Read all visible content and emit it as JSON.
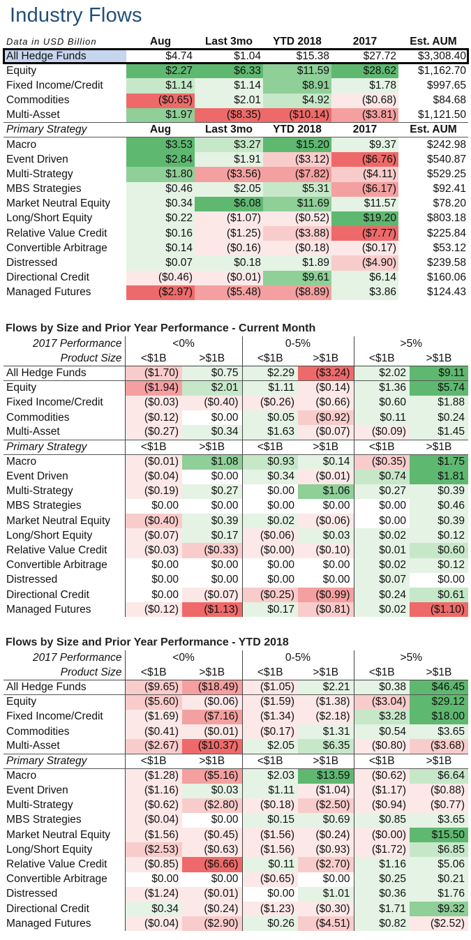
{
  "title": "Industry Flows",
  "colors": {
    "green_strong": "#5fb870",
    "green_mid": "#8fcf98",
    "green_light": "#c6e8c9",
    "green_faint": "#e4f3e4",
    "red_strong": "#ee6a6a",
    "red_mid": "#f4a0a0",
    "red_light": "#f9cccc",
    "red_faint": "#fde8e8",
    "highlight_row": "#c5d6ee"
  },
  "table1": {
    "header": [
      "Data in USD Billion",
      "Aug",
      "Last 3mo",
      "YTD 2018",
      "2017",
      "Est. AUM"
    ],
    "all_row": {
      "label": "All Hedge Funds",
      "cells": [
        "$4.74",
        "$1.04",
        "$15.38",
        "$27.72",
        "$3,308.40"
      ],
      "tones": [
        "",
        "",
        "",
        "",
        ""
      ]
    },
    "asset_rows": [
      {
        "label": "Equity",
        "cells": [
          "$2.27",
          "$6.33",
          "$11.59",
          "$28.62",
          "$1,162.70"
        ],
        "tones": [
          "gs",
          "gs",
          "gm",
          "gs",
          ""
        ]
      },
      {
        "label": "Fixed Income/Credit",
        "cells": [
          "$1.14",
          "$1.14",
          "$8.91",
          "$1.78",
          "$997.65"
        ],
        "tones": [
          "gl",
          "gf",
          "gm",
          "gf",
          ""
        ]
      },
      {
        "label": "Commodities",
        "cells": [
          "($0.65)",
          "$2.01",
          "$4.92",
          "($0.68)",
          "$84.68"
        ],
        "tones": [
          "rs",
          "gf",
          "gl",
          "rf",
          ""
        ]
      },
      {
        "label": "Multi-Asset",
        "cells": [
          "$1.97",
          "($8.35)",
          "($10.14)",
          "($3.81)",
          "$1,121.50"
        ],
        "tones": [
          "gm",
          "rs",
          "rs",
          "rm",
          ""
        ]
      }
    ],
    "strategy_header": [
      "Primary Strategy",
      "Aug",
      "Last 3mo",
      "YTD 2018",
      "2017",
      "Est. AUM"
    ],
    "strategy_rows": [
      {
        "label": "Macro",
        "cells": [
          "$3.53",
          "$3.27",
          "$15.20",
          "$9.37",
          "$242.98"
        ],
        "tones": [
          "gs",
          "gl",
          "gs",
          "gf",
          ""
        ]
      },
      {
        "label": "Event Driven",
        "cells": [
          "$2.84",
          "$1.91",
          "($3.12)",
          "($6.76)",
          "$540.87"
        ],
        "tones": [
          "gs",
          "gf",
          "rl",
          "rs",
          ""
        ]
      },
      {
        "label": "Multi-Strategy",
        "cells": [
          "$1.80",
          "($3.56)",
          "($7.82)",
          "($4.11)",
          "$529.25"
        ],
        "tones": [
          "gm",
          "rm",
          "rm",
          "rl",
          ""
        ]
      },
      {
        "label": "MBS Strategies",
        "cells": [
          "$0.46",
          "$2.05",
          "$5.31",
          "($6.17)",
          "$92.41"
        ],
        "tones": [
          "gf",
          "gf",
          "gl",
          "rm",
          ""
        ]
      },
      {
        "label": "Market Neutral Equity",
        "cells": [
          "$0.34",
          "$6.08",
          "$11.69",
          "$11.57",
          "$78.20"
        ],
        "tones": [
          "gf",
          "gs",
          "gm",
          "gf",
          ""
        ]
      },
      {
        "label": "Long/Short Equity",
        "cells": [
          "$0.22",
          "($1.07)",
          "($0.52)",
          "$19.20",
          "$803.18"
        ],
        "tones": [
          "gf",
          "rf",
          "rf",
          "gs",
          ""
        ]
      },
      {
        "label": "Relative Value Credit",
        "cells": [
          "$0.16",
          "($1.25)",
          "($3.88)",
          "($7.77)",
          "$225.84"
        ],
        "tones": [
          "gf",
          "rf",
          "rl",
          "rs",
          ""
        ]
      },
      {
        "label": "Convertible Arbitrage",
        "cells": [
          "$0.14",
          "($0.16)",
          "($0.18)",
          "($0.17)",
          "$53.12"
        ],
        "tones": [
          "gf",
          "rf",
          "rf",
          "rf",
          ""
        ]
      },
      {
        "label": "Distressed",
        "cells": [
          "$0.07",
          "$0.18",
          "$1.89",
          "($4.90)",
          "$239.58"
        ],
        "tones": [
          "gf",
          "gf",
          "gf",
          "rl",
          ""
        ]
      },
      {
        "label": "Directional Credit",
        "cells": [
          "($0.46)",
          "($0.01)",
          "$9.61",
          "$6.14",
          "$160.06"
        ],
        "tones": [
          "rf",
          "rf",
          "gm",
          "gf",
          ""
        ]
      },
      {
        "label": "Managed Futures",
        "cells": [
          "($2.97)",
          "($5.48)",
          "($8.89)",
          "$3.86",
          "$124.43"
        ],
        "tones": [
          "rs",
          "rm",
          "rm",
          "gf",
          ""
        ]
      }
    ]
  },
  "section2": {
    "title": "Flows by Size and Prior Year Performance - Current Month",
    "perf_label": "2017 Performance",
    "perf_groups": [
      "<0%",
      "0-5%",
      ">5%"
    ],
    "size_label": "Product Size",
    "sizes": [
      "<$1B",
      ">$1B",
      "<$1B",
      ">$1B",
      "<$1B",
      ">$1B"
    ],
    "all_row": {
      "label": "All Hedge Funds",
      "cells": [
        "($1.70)",
        "$0.75",
        "$2.29",
        "($3.24)",
        "$2.02",
        "$9.11"
      ],
      "tones": [
        "rl",
        "gf",
        "gf",
        "rs",
        "gf",
        "gs"
      ]
    },
    "asset_rows": [
      {
        "label": "Equity",
        "cells": [
          "($1.94)",
          "$2.01",
          "$1.11",
          "($0.14)",
          "$1.36",
          "$5.74"
        ],
        "tones": [
          "rm",
          "gl",
          "gf",
          "rf",
          "gf",
          "gs"
        ]
      },
      {
        "label": "Fixed Income/Credit",
        "cells": [
          "($0.03)",
          "($0.40)",
          "($0.26)",
          "($0.66)",
          "$0.60",
          "$1.88"
        ],
        "tones": [
          "rf",
          "rf",
          "rf",
          "rf",
          "gf",
          "gf"
        ]
      },
      {
        "label": "Commodities",
        "cells": [
          "($0.12)",
          "$0.00",
          "$0.05",
          "($0.92)",
          "$0.11",
          "$0.24"
        ],
        "tones": [
          "rf",
          "",
          "gf",
          "rl",
          "gf",
          "gf"
        ]
      },
      {
        "label": "Multi-Asset",
        "cells": [
          "($0.27)",
          "$0.34",
          "$1.63",
          "($0.07)",
          "($0.09)",
          "$1.45"
        ],
        "tones": [
          "rf",
          "gf",
          "gf",
          "rf",
          "rf",
          "gf"
        ]
      }
    ],
    "strategy_label": "Primary Strategy",
    "strategy_rows": [
      {
        "label": "Macro",
        "cells": [
          "($0.01)",
          "$1.08",
          "$0.93",
          "$0.14",
          "($0.35)",
          "$1.75"
        ],
        "tones": [
          "rf",
          "gm",
          "gl",
          "gf",
          "rl",
          "gs"
        ]
      },
      {
        "label": "Event Driven",
        "cells": [
          "($0.04)",
          "$0.00",
          "$0.34",
          "($0.01)",
          "$0.74",
          "$1.81"
        ],
        "tones": [
          "rf",
          "",
          "gf",
          "rf",
          "gl",
          "gs"
        ]
      },
      {
        "label": "Multi-Strategy",
        "cells": [
          "($0.19)",
          "$0.27",
          "$0.00",
          "$1.06",
          "$0.27",
          "$0.39"
        ],
        "tones": [
          "rf",
          "gf",
          "",
          "gm",
          "gf",
          "gf"
        ]
      },
      {
        "label": "MBS Strategies",
        "cells": [
          "$0.00",
          "$0.00",
          "$0.00",
          "$0.00",
          "$0.00",
          "$0.46"
        ],
        "tones": [
          "",
          "",
          "",
          "",
          "",
          "gf"
        ]
      },
      {
        "label": "Market Neutral Equity",
        "cells": [
          "($0.40)",
          "$0.39",
          "$0.02",
          "($0.06)",
          "$0.00",
          "$0.39"
        ],
        "tones": [
          "rl",
          "gf",
          "gf",
          "rf",
          "",
          "gf"
        ]
      },
      {
        "label": "Long/Short Equity",
        "cells": [
          "($0.07)",
          "$0.17",
          "($0.06)",
          "$0.03",
          "$0.02",
          "$0.12"
        ],
        "tones": [
          "rf",
          "gf",
          "rf",
          "gf",
          "gf",
          "gf"
        ]
      },
      {
        "label": "Relative Value Credit",
        "cells": [
          "($0.03)",
          "($0.33)",
          "($0.00)",
          "($0.10)",
          "$0.01",
          "$0.60"
        ],
        "tones": [
          "rf",
          "rl",
          "rf",
          "rf",
          "gf",
          "gl"
        ]
      },
      {
        "label": "Convertible Arbitrage",
        "cells": [
          "$0.00",
          "$0.00",
          "$0.00",
          "$0.00",
          "$0.02",
          "$0.12"
        ],
        "tones": [
          "",
          "",
          "",
          "",
          "gf",
          "gf"
        ]
      },
      {
        "label": "Distressed",
        "cells": [
          "$0.00",
          "$0.00",
          "$0.00",
          "$0.00",
          "$0.07",
          "$0.00"
        ],
        "tones": [
          "",
          "",
          "",
          "",
          "gf",
          ""
        ]
      },
      {
        "label": "Directional Credit",
        "cells": [
          "$0.00",
          "($0.07)",
          "($0.25)",
          "($0.99)",
          "$0.24",
          "$0.61"
        ],
        "tones": [
          "",
          "rf",
          "rl",
          "rm",
          "gf",
          "gl"
        ]
      },
      {
        "label": "Managed Futures",
        "cells": [
          "($0.12)",
          "($1.13)",
          "$0.17",
          "($0.81)",
          "$0.02",
          "($1.10)"
        ],
        "tones": [
          "rf",
          "rs",
          "gf",
          "rl",
          "gf",
          "rs"
        ]
      }
    ]
  },
  "section3": {
    "title": "Flows by Size and Prior Year Performance - YTD 2018",
    "perf_label": "2017 Performance",
    "perf_groups": [
      "<0%",
      "0-5%",
      ">5%"
    ],
    "size_label": "Product Size",
    "sizes": [
      "<$1B",
      ">$1B",
      "<$1B",
      ">$1B",
      "<$1B",
      ">$1B"
    ],
    "all_row": {
      "label": "All Hedge Funds",
      "cells": [
        "($9.65)",
        "($18.49)",
        "($1.05)",
        "$2.21",
        "$0.38",
        "$46.45"
      ],
      "tones": [
        "rl",
        "rm",
        "rf",
        "gf",
        "gf",
        "gs"
      ]
    },
    "asset_rows": [
      {
        "label": "Equity",
        "cells": [
          "($5.60)",
          "($0.06)",
          "($1.59)",
          "($1.38)",
          "($3.04)",
          "$29.12"
        ],
        "tones": [
          "rl",
          "rf",
          "rf",
          "rf",
          "rl",
          "gs"
        ]
      },
      {
        "label": "Fixed Income/Credit",
        "cells": [
          "($1.69)",
          "($7.16)",
          "($1.34)",
          "($2.18)",
          "$3.28",
          "$18.00"
        ],
        "tones": [
          "rf",
          "rm",
          "rf",
          "rf",
          "gl",
          "gs"
        ]
      },
      {
        "label": "Commodities",
        "cells": [
          "($0.41)",
          "($0.01)",
          "($0.17)",
          "$1.31",
          "$0.54",
          "$3.65"
        ],
        "tones": [
          "rf",
          "rf",
          "rf",
          "gf",
          "gf",
          "gf"
        ]
      },
      {
        "label": "Multi-Asset",
        "cells": [
          "($2.67)",
          "($10.37)",
          "$2.05",
          "$6.35",
          "($0.80)",
          "($3.68)"
        ],
        "tones": [
          "rl",
          "rs",
          "gf",
          "gl",
          "rf",
          "rl"
        ]
      }
    ],
    "strategy_label": "Primary Strategy",
    "strategy_rows": [
      {
        "label": "Macro",
        "cells": [
          "($1.28)",
          "($5.16)",
          "$2.03",
          "$13.59",
          "($0.62)",
          "$6.64"
        ],
        "tones": [
          "rf",
          "rm",
          "gf",
          "gs",
          "rf",
          "gl"
        ]
      },
      {
        "label": "Event Driven",
        "cells": [
          "($1.16)",
          "$0.03",
          "$1.11",
          "($1.04)",
          "($1.17)",
          "($0.88)"
        ],
        "tones": [
          "rf",
          "gf",
          "gf",
          "rf",
          "rf",
          "rf"
        ]
      },
      {
        "label": "Multi-Strategy",
        "cells": [
          "($0.62)",
          "($2.80)",
          "($0.18)",
          "($2.50)",
          "($0.94)",
          "($0.77)"
        ],
        "tones": [
          "rf",
          "rl",
          "rf",
          "rl",
          "rf",
          "rf"
        ]
      },
      {
        "label": "MBS Strategies",
        "cells": [
          "($0.04)",
          "$0.00",
          "$0.15",
          "$0.69",
          "$0.85",
          "$3.65"
        ],
        "tones": [
          "rf",
          "",
          "gf",
          "gf",
          "gf",
          "gf"
        ]
      },
      {
        "label": "Market Neutral Equity",
        "cells": [
          "($1.56)",
          "($0.45)",
          "($1.56)",
          "($0.24)",
          "($0.00)",
          "$15.50"
        ],
        "tones": [
          "rf",
          "rf",
          "rf",
          "rf",
          "rf",
          "gs"
        ]
      },
      {
        "label": "Long/Short Equity",
        "cells": [
          "($2.53)",
          "($0.63)",
          "($1.56)",
          "($0.93)",
          "($1.72)",
          "$6.85"
        ],
        "tones": [
          "rl",
          "rf",
          "rf",
          "rf",
          "rf",
          "gl"
        ]
      },
      {
        "label": "Relative Value Credit",
        "cells": [
          "($0.85)",
          "($6.66)",
          "$0.11",
          "($2.70)",
          "$1.16",
          "$5.06"
        ],
        "tones": [
          "rf",
          "rs",
          "gf",
          "rl",
          "gf",
          "gf"
        ]
      },
      {
        "label": "Convertible Arbitrage",
        "cells": [
          "$0.00",
          "$0.00",
          "($0.65)",
          "$0.00",
          "$0.25",
          "$0.21"
        ],
        "tones": [
          "",
          "",
          "rf",
          "",
          "gf",
          "gf"
        ]
      },
      {
        "label": "Distressed",
        "cells": [
          "($1.24)",
          "($0.01)",
          "$0.00",
          "$1.01",
          "$0.36",
          "$1.76"
        ],
        "tones": [
          "rf",
          "rf",
          "",
          "gf",
          "gf",
          "gf"
        ]
      },
      {
        "label": "Directional Credit",
        "cells": [
          "$0.34",
          "($0.24)",
          "($1.23)",
          "($0.30)",
          "$1.71",
          "$9.32"
        ],
        "tones": [
          "gf",
          "rf",
          "rf",
          "rf",
          "gf",
          "gm"
        ]
      },
      {
        "label": "Managed Futures",
        "cells": [
          "($0.04)",
          "($2.90)",
          "$0.26",
          "($4.51)",
          "$0.82",
          "($2.52)"
        ],
        "tones": [
          "rf",
          "rl",
          "gf",
          "rl",
          "gf",
          "rf"
        ]
      }
    ]
  }
}
